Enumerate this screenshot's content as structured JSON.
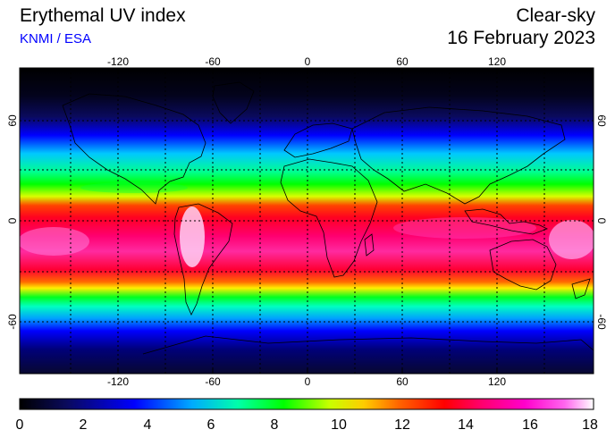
{
  "header": {
    "title": "Erythemal UV index",
    "credit": "KNMI / ESA",
    "mode": "Clear-sky",
    "date": "16 February 2023"
  },
  "map": {
    "longitude_ticks": [
      "-120",
      "-60",
      "0",
      "60",
      "120"
    ],
    "latitude_ticks": [
      "60",
      "0",
      "-60"
    ],
    "longitude_values": [
      -120,
      -60,
      0,
      60,
      120
    ],
    "latitude_values": [
      60,
      0,
      -60
    ],
    "gridlines": "dotted",
    "colors": {
      "ocean_low_uv": "#000000",
      "coastline": "#000000",
      "grid": "#000000"
    }
  },
  "colorbar": {
    "ticks": [
      "0",
      "2",
      "4",
      "6",
      "8",
      "10",
      "12",
      "14",
      "16",
      "18"
    ],
    "range": [
      0,
      18
    ],
    "colors": [
      "#000000",
      "#0a0a5a",
      "#0000ff",
      "#00aaff",
      "#00ffaa",
      "#00ff00",
      "#c8ff00",
      "#ffcc00",
      "#ff6600",
      "#ff0000",
      "#ff0066",
      "#ff00cc",
      "#ff66ee",
      "#ffffff"
    ]
  }
}
